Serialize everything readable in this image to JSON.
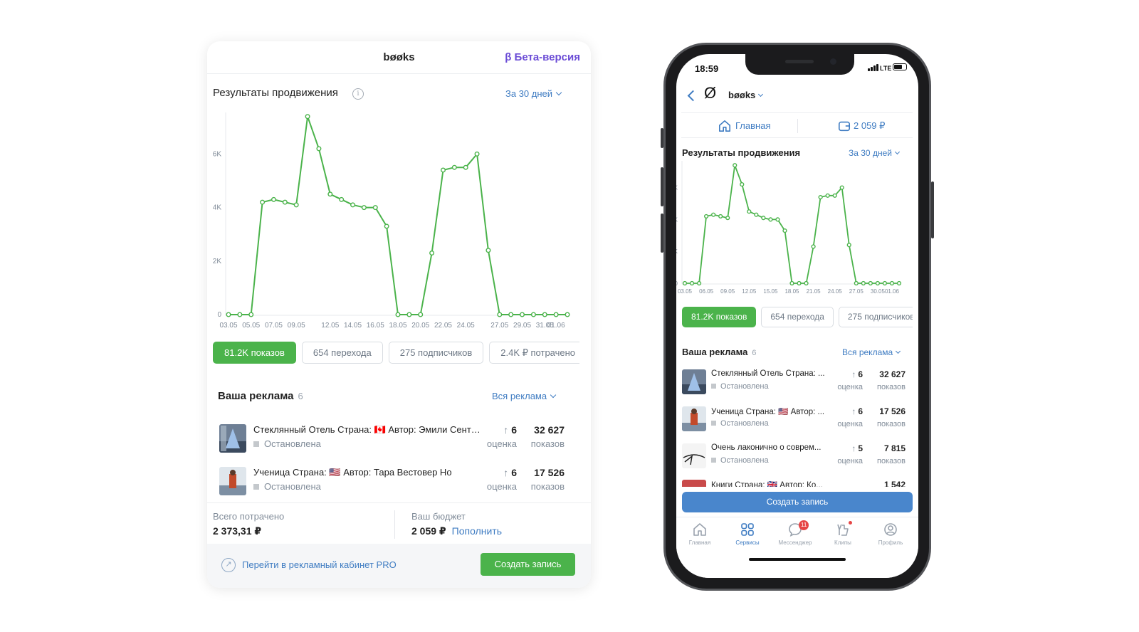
{
  "brand": "bøøks",
  "beta": "β Бета-версия",
  "promo": {
    "title": "Результаты продвижения",
    "info": "i",
    "period": "За 30 дней"
  },
  "chart_data": {
    "type": "line",
    "x": [
      "03.05",
      "04.05",
      "05.05",
      "06.05",
      "07.05",
      "08.05",
      "09.05",
      "10.05",
      "11.05",
      "12.05",
      "13.05",
      "14.05",
      "15.05",
      "16.05",
      "17.05",
      "18.05",
      "19.05",
      "20.05",
      "21.05",
      "22.05",
      "23.05",
      "24.05",
      "25.05",
      "26.05",
      "27.05",
      "28.05",
      "29.05",
      "30.05",
      "31.05",
      "01.06",
      "02.06"
    ],
    "x_ticks": [
      "03.05",
      "05.05",
      "07.05",
      "09.05",
      "12.05",
      "14.05",
      "16.05",
      "18.05",
      "20.05",
      "22.05",
      "24.05",
      "27.05",
      "29.05",
      "31.05",
      "01.06"
    ],
    "phone_x_ticks": [
      "03.05",
      "06.05",
      "09.05",
      "12.05",
      "15.05",
      "18.05",
      "21.05",
      "24.05",
      "27.05",
      "30.05",
      "01.06"
    ],
    "values": [
      0,
      0,
      0,
      4200,
      4300,
      4200,
      4100,
      7400,
      6200,
      4500,
      4300,
      4100,
      4000,
      4000,
      3300,
      0,
      0,
      0,
      2300,
      5400,
      5500,
      5500,
      6000,
      2400,
      0,
      0,
      0,
      0,
      0,
      0,
      0
    ],
    "y_ticks": [
      "0",
      "2K",
      "4K",
      "6K"
    ],
    "ylim": [
      0,
      7500
    ],
    "color": "#4bb34b",
    "grid": false
  },
  "pills": [
    "81.2K показов",
    "654 перехода",
    "275 подписчиков",
    "2.4K ₽ потрачено"
  ],
  "ads": {
    "title": "Ваша реклама",
    "count": "6",
    "all_label": "Вся реклама",
    "items": [
      {
        "name": "Стеклянный Отель Страна: 🇨🇦 Автор: Эмили Сент-Джон Мандел",
        "phone_name": "Стеклянный Отель Страна: ...",
        "status": "Остановлена",
        "score": "6",
        "score_label": "оценка",
        "views": "32 627",
        "views_label": "показов"
      },
      {
        "name": "Ученица Страна: 🇺🇸 Автор: Тара Вестовер Но",
        "phone_name": "Ученица Страна: 🇺🇸 Автор: ...",
        "status": "Остановлена",
        "score": "6",
        "score_label": "оценка",
        "views": "17 526",
        "views_label": "показов"
      },
      {
        "name": "Очень лаконично о современ...",
        "phone_name": "Очень лаконично о соврем...",
        "status": "Остановлена",
        "score": "5",
        "score_label": "оценка",
        "views": "7 815",
        "views_label": "показов"
      },
      {
        "phone_name": "Книги Страна: 🇬🇧 Автор: Ко...",
        "views": "1 542"
      }
    ]
  },
  "budget": {
    "spent_label": "Всего потрачено",
    "spent_value": "2 373,31 ₽",
    "budget_label": "Ваш бюджет",
    "budget_value": "2 059 ₽",
    "topup": "Пополнить"
  },
  "footer": {
    "pro_link": "Перейти в рекламный кабинет PRO",
    "create": "Создать запись"
  },
  "phone": {
    "time": "18:59",
    "network": "LTE",
    "tab_home": "Главная",
    "tab_wallet": "2 059 ₽",
    "create": "Создать запись",
    "tabbar": [
      {
        "label": "Главная",
        "icon": "home-icon"
      },
      {
        "label": "Сервисы",
        "icon": "services-icon"
      },
      {
        "label": "Мессенджер",
        "icon": "messenger-icon",
        "badge": "11"
      },
      {
        "label": "Клипы",
        "icon": "clips-icon"
      },
      {
        "label": "Профиль",
        "icon": "profile-icon"
      }
    ]
  }
}
